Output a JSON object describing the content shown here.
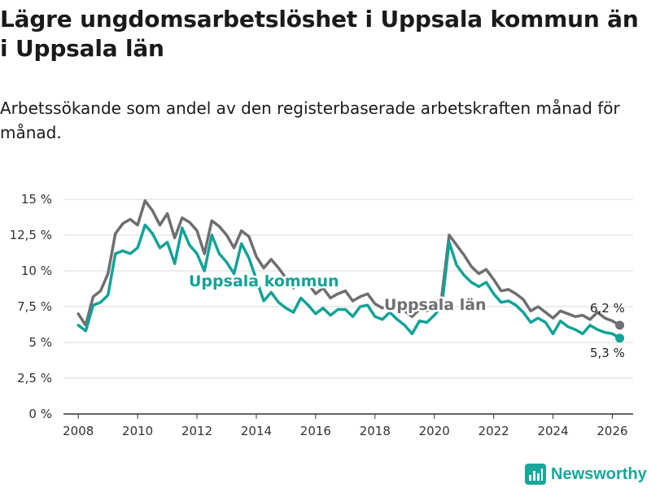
{
  "title": "Lägre ungdomsarbetslöshet i Uppsala kommun än i Uppsala län",
  "subtitle": "Arbetssökande som andel av den registerbaserade arbetskraften månad för månad.",
  "brand": "Newsworthy",
  "chart_data": {
    "type": "line",
    "ylim": [
      0,
      15
    ],
    "xlim": [
      2007.5,
      2026.7
    ],
    "y_ticks": [
      0,
      2.5,
      5,
      7.5,
      10,
      12.5,
      15
    ],
    "y_tick_labels": [
      "0 %",
      "2,5 %",
      "5 %",
      "7,5 %",
      "10 %",
      "12,5 %",
      "15 %"
    ],
    "x_ticks": [
      2008,
      2010,
      2012,
      2014,
      2016,
      2018,
      2020,
      2022,
      2024,
      2026
    ],
    "x_tick_labels": [
      "2008",
      "2010",
      "2012",
      "2014",
      "2016",
      "2018",
      "2020",
      "2022",
      "2024",
      "2026"
    ],
    "grid": true,
    "colors": {
      "lan": "#6e6e73",
      "kommun": "#12a396",
      "grid": "#d9d9d9",
      "axis": "#333333"
    },
    "series": [
      {
        "name": "Uppsala län",
        "key": "lan",
        "x": [
          2008.0,
          2008.25,
          2008.5,
          2008.75,
          2009.0,
          2009.25,
          2009.5,
          2009.75,
          2010.0,
          2010.25,
          2010.5,
          2010.75,
          2011.0,
          2011.25,
          2011.5,
          2011.75,
          2012.0,
          2012.25,
          2012.5,
          2012.75,
          2013.0,
          2013.25,
          2013.5,
          2013.75,
          2014.0,
          2014.25,
          2014.5,
          2014.75,
          2015.0,
          2015.25,
          2015.5,
          2015.75,
          2016.0,
          2016.25,
          2016.5,
          2016.75,
          2017.0,
          2017.25,
          2017.5,
          2017.75,
          2018.0,
          2018.25,
          2018.5,
          2018.75,
          2019.0,
          2019.25,
          2019.5,
          2019.75,
          2020.0,
          2020.25,
          2020.5,
          2020.75,
          2021.0,
          2021.25,
          2021.5,
          2021.75,
          2022.0,
          2022.25,
          2022.5,
          2022.75,
          2023.0,
          2023.25,
          2023.5,
          2023.75,
          2024.0,
          2024.25,
          2024.5,
          2024.75,
          2025.0,
          2025.25,
          2025.5,
          2025.75,
          2026.0,
          2026.25
        ],
        "values": [
          7.0,
          6.2,
          8.2,
          8.6,
          9.8,
          12.6,
          13.3,
          13.6,
          13.2,
          14.9,
          14.2,
          13.2,
          14.0,
          12.3,
          13.7,
          13.4,
          12.8,
          11.2,
          13.5,
          13.1,
          12.5,
          11.6,
          12.8,
          12.4,
          11.0,
          10.2,
          10.8,
          10.2,
          9.5,
          8.8,
          9.4,
          9.1,
          8.4,
          8.8,
          8.1,
          8.4,
          8.6,
          7.9,
          8.2,
          8.4,
          7.7,
          7.4,
          7.7,
          7.5,
          7.2,
          6.8,
          7.3,
          7.2,
          7.6,
          8.2,
          12.5,
          11.8,
          11.1,
          10.3,
          9.8,
          10.1,
          9.4,
          8.6,
          8.7,
          8.4,
          8.0,
          7.2,
          7.5,
          7.1,
          6.7,
          7.2,
          7.0,
          6.8,
          6.9,
          6.6,
          7.1,
          6.7,
          6.5,
          6.2
        ]
      },
      {
        "name": "Uppsala kommun",
        "key": "kommun",
        "x": [
          2008.0,
          2008.25,
          2008.5,
          2008.75,
          2009.0,
          2009.25,
          2009.5,
          2009.75,
          2010.0,
          2010.25,
          2010.5,
          2010.75,
          2011.0,
          2011.25,
          2011.5,
          2011.75,
          2012.0,
          2012.25,
          2012.5,
          2012.75,
          2013.0,
          2013.25,
          2013.5,
          2013.75,
          2014.0,
          2014.25,
          2014.5,
          2014.75,
          2015.0,
          2015.25,
          2015.5,
          2015.75,
          2016.0,
          2016.25,
          2016.5,
          2016.75,
          2017.0,
          2017.25,
          2017.5,
          2017.75,
          2018.0,
          2018.25,
          2018.5,
          2018.75,
          2019.0,
          2019.25,
          2019.5,
          2019.75,
          2020.0,
          2020.25,
          2020.5,
          2020.75,
          2021.0,
          2021.25,
          2021.5,
          2021.75,
          2022.0,
          2022.25,
          2022.5,
          2022.75,
          2023.0,
          2023.25,
          2023.5,
          2023.75,
          2024.0,
          2024.25,
          2024.5,
          2024.75,
          2025.0,
          2025.25,
          2025.5,
          2025.75,
          2026.0,
          2026.25
        ],
        "values": [
          6.2,
          5.8,
          7.6,
          7.8,
          8.3,
          11.2,
          11.4,
          11.2,
          11.6,
          13.2,
          12.6,
          11.6,
          12.0,
          10.5,
          13.0,
          11.8,
          11.2,
          10.0,
          12.5,
          11.2,
          10.6,
          9.8,
          11.9,
          10.9,
          9.4,
          7.9,
          8.5,
          7.8,
          7.4,
          7.1,
          8.1,
          7.6,
          7.0,
          7.4,
          6.9,
          7.3,
          7.3,
          6.8,
          7.5,
          7.6,
          6.8,
          6.6,
          7.1,
          6.6,
          6.2,
          5.6,
          6.5,
          6.4,
          6.9,
          7.5,
          12.0,
          10.4,
          9.7,
          9.2,
          8.9,
          9.2,
          8.4,
          7.8,
          7.9,
          7.6,
          7.1,
          6.4,
          6.7,
          6.4,
          5.6,
          6.5,
          6.1,
          5.9,
          5.6,
          6.2,
          5.9,
          5.7,
          5.6,
          5.3
        ]
      }
    ],
    "series_labels": {
      "lan": "Uppsala län",
      "kommun": "Uppsala kommun"
    },
    "end_labels": {
      "lan": "6,2 %",
      "kommun": "5,3 %"
    }
  }
}
